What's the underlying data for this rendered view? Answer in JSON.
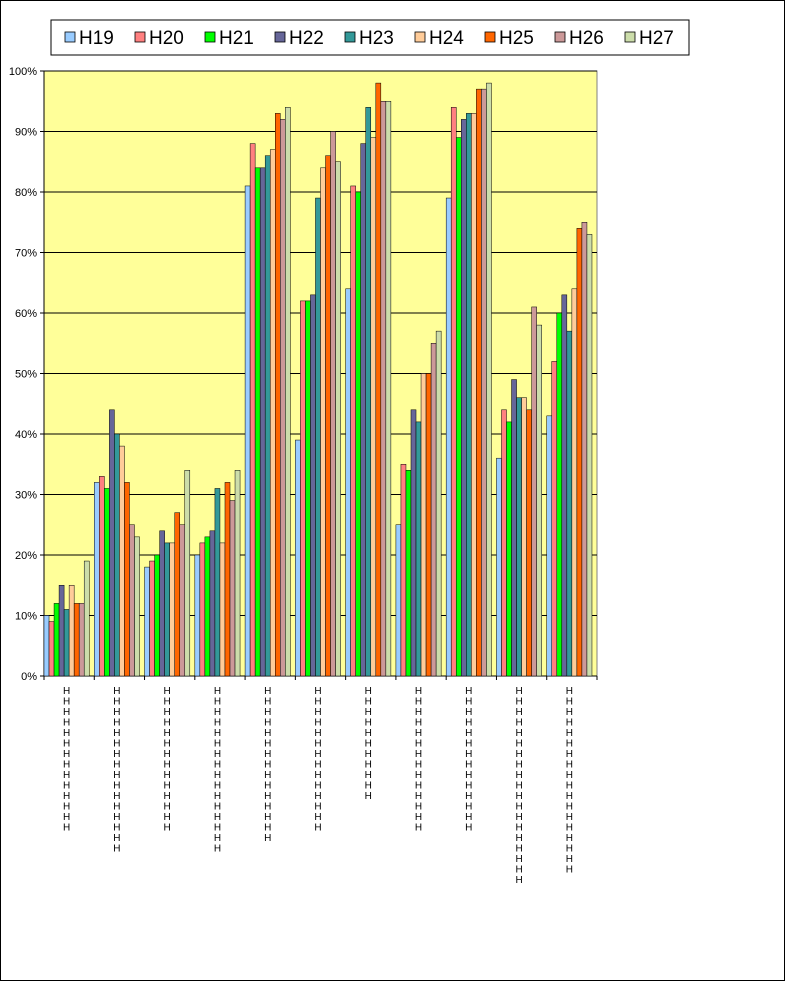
{
  "chart_data": {
    "type": "bar",
    "title": "",
    "xlabel": "",
    "ylabel": "",
    "ylim": [
      0,
      100
    ],
    "yticks": [
      "0%",
      "10%",
      "20%",
      "30%",
      "40%",
      "50%",
      "60%",
      "70%",
      "80%",
      "90%",
      "100%"
    ],
    "grid": true,
    "legend_position": "top",
    "plot_background": "#ffff99",
    "categories": [
      "HHHHHHHHHHHHHH",
      "HHHHHHHHHHHHHHHH",
      "HHHHHHHHHHHHHH",
      "HHHHHHHHHHHHHHHH",
      "HHHHHHHHHHHHHHH",
      "HHHHHHHHHHHHHH",
      "HHHHHHHHHHH",
      "HHHHHHHHHHHHHH",
      "HHHHHHHHHHHHHH",
      "HHHHHHHHHHHHHHHHHHH",
      "HHHHHHHHHHHHHHHHHH"
    ],
    "series": [
      {
        "name": "H19",
        "color": "#99ccff",
        "values": [
          10,
          32,
          18,
          20,
          81,
          39,
          64,
          25,
          79,
          36,
          43
        ]
      },
      {
        "name": "H20",
        "color": "#ff8080",
        "values": [
          9,
          33,
          19,
          22,
          88,
          62,
          81,
          35,
          94,
          44,
          52
        ]
      },
      {
        "name": "H21",
        "color": "#00ff00",
        "values": [
          12,
          31,
          20,
          23,
          84,
          62,
          80,
          34,
          89,
          42,
          60
        ]
      },
      {
        "name": "H22",
        "color": "#666699",
        "values": [
          15,
          44,
          24,
          24,
          84,
          63,
          88,
          44,
          92,
          49,
          63
        ]
      },
      {
        "name": "H23",
        "color": "#339999",
        "values": [
          11,
          40,
          22,
          31,
          86,
          79,
          94,
          42,
          93,
          46,
          57
        ]
      },
      {
        "name": "H24",
        "color": "#ffcc99",
        "values": [
          15,
          38,
          22,
          22,
          87,
          84,
          89,
          50,
          93,
          46,
          64
        ]
      },
      {
        "name": "H25",
        "color": "#ff6600",
        "values": [
          12,
          32,
          27,
          32,
          93,
          86,
          98,
          50,
          97,
          44,
          74
        ]
      },
      {
        "name": "H26",
        "color": "#cc9999",
        "values": [
          12,
          25,
          25,
          29,
          92,
          90,
          95,
          55,
          97,
          61,
          75
        ]
      },
      {
        "name": "H27",
        "color": "#ccddaa",
        "values": [
          19,
          23,
          34,
          34,
          94,
          85,
          95,
          57,
          98,
          58,
          73
        ]
      }
    ]
  }
}
